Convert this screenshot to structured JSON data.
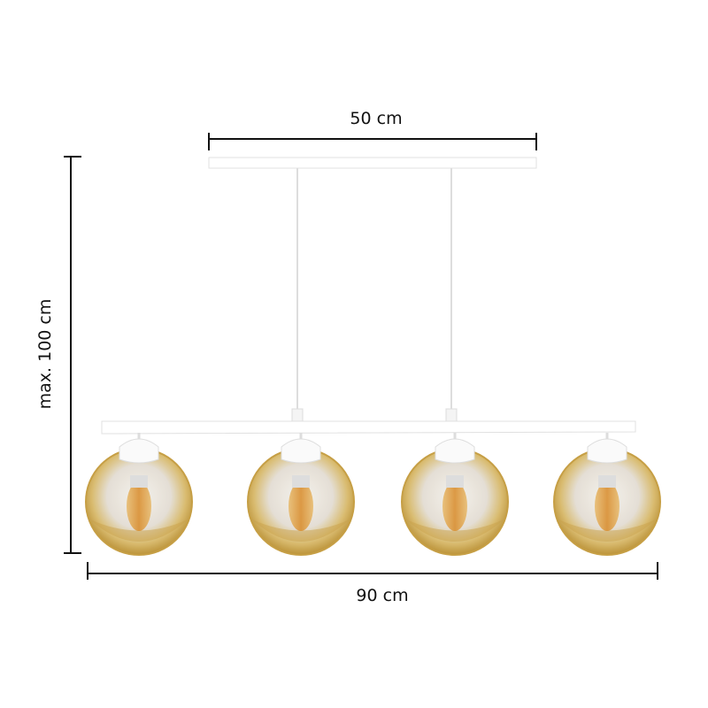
{
  "dimensions": {
    "top_width": "50 cm",
    "height": "max. 100 cm",
    "width": "90 cm"
  }
}
